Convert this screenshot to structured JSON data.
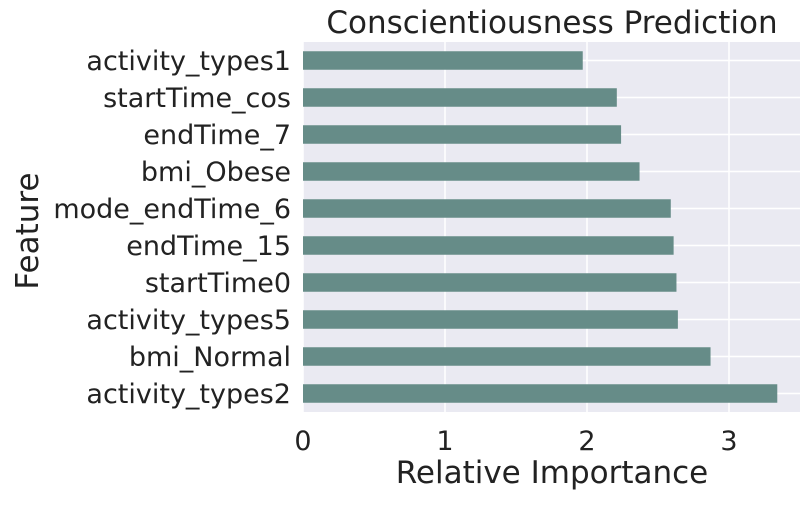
{
  "chart_data": {
    "type": "bar",
    "orientation": "horizontal",
    "title": "Conscientiousness Prediction",
    "xlabel": "Relative Importance",
    "ylabel": "Feature",
    "categories": [
      "activity_types1",
      "startTime_cos",
      "endTime_7",
      "bmi_Obese",
      "mode_endTime_6",
      "endTime_15",
      "startTime0",
      "activity_types5",
      "bmi_Normal",
      "activity_types2"
    ],
    "values": [
      1.97,
      2.21,
      2.24,
      2.37,
      2.59,
      2.61,
      2.63,
      2.64,
      2.87,
      3.34
    ],
    "xlim": [
      0,
      3.5
    ],
    "xticks": [
      0,
      1,
      2,
      3
    ],
    "grid": true,
    "bar_color": "#668c88",
    "background_color": "#eaeaf2"
  }
}
